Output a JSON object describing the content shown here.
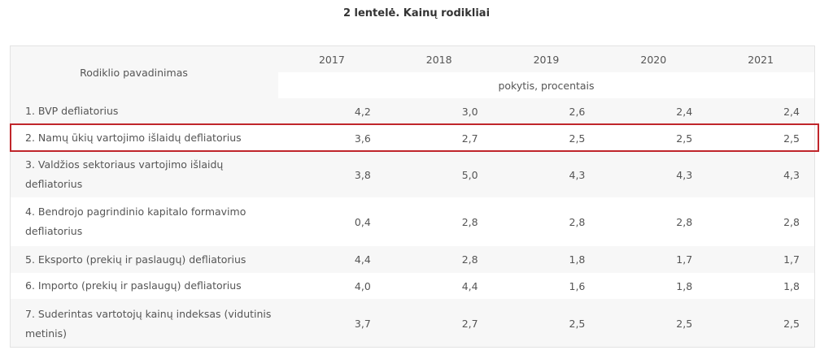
{
  "caption": "2 lentelė. Kainų rodikliai",
  "header": {
    "name_label": "Rodiklio pavadinimas",
    "years": [
      "2017",
      "2018",
      "2019",
      "2020",
      "2021"
    ],
    "unit": "pokytis, procentais"
  },
  "rows": [
    {
      "name": "1. BVP defliatorius",
      "values": [
        "4,2",
        "3,0",
        "2,6",
        "2,4",
        "2,4"
      ]
    },
    {
      "name": "2. Namų ūkių vartojimo išlaidų defliatorius",
      "values": [
        "3,6",
        "2,7",
        "2,5",
        "2,5",
        "2,5"
      ]
    },
    {
      "name": "3. Valdžios sektoriaus vartojimo išlaidų defliatorius",
      "values": [
        "3,8",
        "5,0",
        "4,3",
        "4,3",
        "4,3"
      ]
    },
    {
      "name": "4. Bendrojo pagrindinio kapitalo formavimo defliatorius",
      "values": [
        "0,4",
        "2,8",
        "2,8",
        "2,8",
        "2,8"
      ]
    },
    {
      "name": "5. Eksporto (prekių ir paslaugų) defliatorius",
      "values": [
        "4,4",
        "2,8",
        "1,8",
        "1,7",
        "1,7"
      ]
    },
    {
      "name": "6. Importo (prekių ir paslaugų) defliatorius",
      "values": [
        "4,0",
        "4,4",
        "1,6",
        "1,8",
        "1,8"
      ]
    },
    {
      "name": "7. Suderintas vartotojų kainų indeksas (vidutinis metinis)",
      "values": [
        "3,7",
        "2,7",
        "2,5",
        "2,5",
        "2,5"
      ]
    }
  ],
  "highlight_color": "#c0262b"
}
